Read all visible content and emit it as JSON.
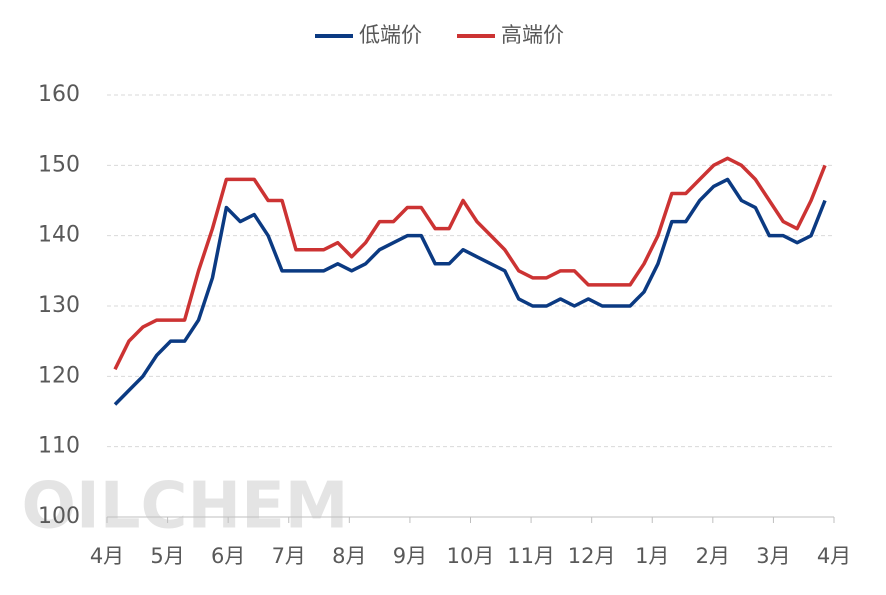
{
  "chart_data": {
    "type": "line",
    "watermark": "OILCHEM",
    "month_labels": [
      "4月",
      "5月",
      "6月",
      "7月",
      "8月",
      "9月",
      "10月",
      "11月",
      "12月",
      "1月",
      "2月",
      "3月",
      "4月"
    ],
    "series": [
      {
        "name": "低端价",
        "color": "#0b3a82",
        "values": [
          116,
          118,
          120,
          123,
          125,
          125,
          128,
          134,
          144,
          142,
          143,
          140,
          135,
          135,
          135,
          135,
          136,
          135,
          136,
          138,
          139,
          140,
          140,
          136,
          136,
          138,
          137,
          136,
          135,
          131,
          130,
          130,
          131,
          130,
          131,
          130,
          130,
          130,
          132,
          136,
          142,
          142,
          145,
          147,
          148,
          145,
          144,
          140,
          140,
          139,
          140,
          145
        ]
      },
      {
        "name": "高端价",
        "color": "#cc3333",
        "values": [
          121,
          125,
          127,
          128,
          128,
          128,
          135,
          141,
          148,
          148,
          148,
          145,
          145,
          138,
          138,
          138,
          139,
          137,
          139,
          142,
          142,
          144,
          144,
          141,
          141,
          145,
          142,
          140,
          138,
          135,
          134,
          134,
          135,
          135,
          133,
          133,
          133,
          133,
          136,
          140,
          146,
          146,
          148,
          150,
          151,
          150,
          148,
          145,
          142,
          141,
          145,
          150
        ]
      }
    ],
    "ylim": [
      100,
      160
    ],
    "yticks": [
      100,
      110,
      120,
      130,
      140,
      150,
      160
    ],
    "grid": true
  }
}
